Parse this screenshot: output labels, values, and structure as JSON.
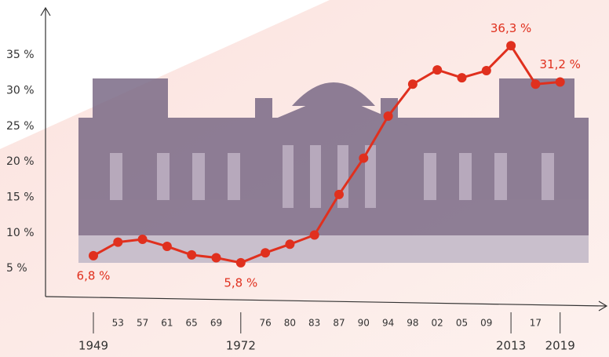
{
  "chart_data": {
    "type": "line",
    "categories": [
      "1949",
      "53",
      "57",
      "61",
      "65",
      "69",
      "1972",
      "76",
      "80",
      "83",
      "87",
      "90",
      "94",
      "98",
      "02",
      "05",
      "09",
      "2013",
      "17",
      "2019"
    ],
    "series": [
      {
        "color": "#e0301e",
        "values": [
          6.8,
          8.7,
          9.1,
          8.1,
          6.9,
          6.5,
          5.8,
          7.2,
          8.4,
          9.7,
          15.4,
          20.5,
          26.4,
          30.9,
          32.9,
          31.8,
          32.8,
          36.3,
          30.9,
          31.2
        ],
        "value_labels": [
          "6,8 %",
          null,
          null,
          null,
          null,
          null,
          "5,8 %",
          null,
          null,
          null,
          null,
          null,
          null,
          null,
          null,
          null,
          null,
          "36,3 %",
          null,
          "31,2 %"
        ]
      }
    ],
    "ylim": [
      0,
      42
    ],
    "yticks": [
      {
        "value": 5,
        "label": "5 %"
      },
      {
        "value": 10,
        "label": "10 %"
      },
      {
        "value": 15,
        "label": "15 %"
      },
      {
        "value": 20,
        "label": "20 %"
      },
      {
        "value": 25,
        "label": "25 %"
      },
      {
        "value": 30,
        "label": "30 %"
      },
      {
        "value": 35,
        "label": "35 %"
      }
    ]
  }
}
